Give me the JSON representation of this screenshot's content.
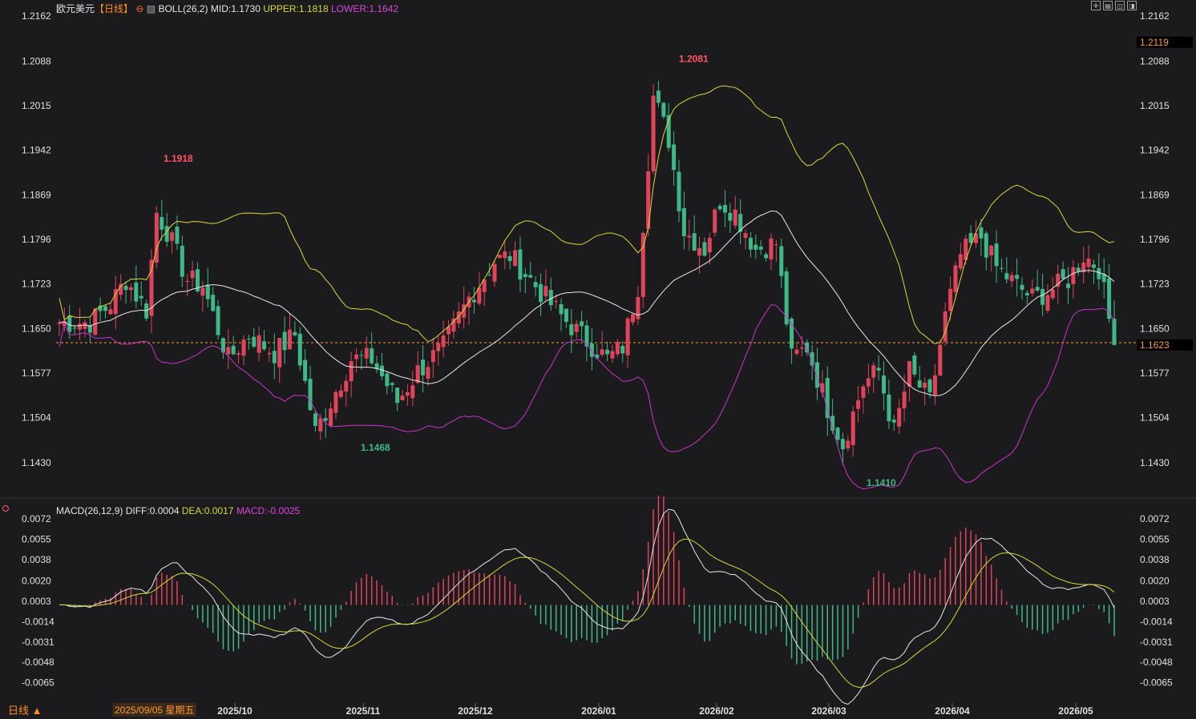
{
  "header": {
    "symbol": "欧元美元",
    "period_tag": "【日线】",
    "boll_label": "BOLL(26,2)",
    "mid": "MID:1.1730",
    "upper": "UPPER:1.1818",
    "lower": "LOWER:1.1642"
  },
  "macd_header": {
    "label": "MACD(26,12,9)",
    "diff": "DIFF:0.0004",
    "dea": "DEA:0.0017",
    "macd": "MACD:-0.0025"
  },
  "toolbar": {
    "icons": [
      "crosshair-icon",
      "layout-icon",
      "expand-icon",
      "collapse-icon"
    ]
  },
  "footer": {
    "period": "日线 ▲",
    "date_tip": "2025/09/05 星期五"
  },
  "price_tags": {
    "high_price": "1.2119",
    "current": "1.1623"
  },
  "colors": {
    "up": "#e0445a",
    "down": "#3fb887",
    "upper": "#d8d83a",
    "lower": "#cc33cc",
    "mid": "#e8e8e8",
    "dea": "#d8d83a",
    "diff": "#e8e8e8"
  },
  "chart_data": [
    {
      "type": "candlestick",
      "title": "欧元美元 日线",
      "y_ticks": [
        "1.2162",
        "1.2088",
        "1.2015",
        "1.1942",
        "1.1869",
        "1.1796",
        "1.1723",
        "1.1650",
        "1.1577",
        "1.1504",
        "1.1430"
      ],
      "ylim": [
        1.1388,
        1.2162
      ],
      "x_ticks": [
        "2025/10",
        "2025/11",
        "2025/12",
        "2026/01",
        "2026/02",
        "2026/03",
        "2026/04",
        "2026/05"
      ],
      "annotations": [
        {
          "label": "1.1918",
          "value": 1.1918
        },
        {
          "label": "1.2081",
          "value": 1.2081
        },
        {
          "label": "1.1468",
          "value": 1.1468
        },
        {
          "label": "1.1410",
          "value": 1.141
        }
      ],
      "current_price": 1.1623,
      "boll": {
        "period": 26,
        "width": 2,
        "mid": 1.173,
        "upper": 1.1818,
        "lower": 1.1642
      },
      "anchors": [
        [
          0,
          1.166
        ],
        [
          6,
          1.166
        ],
        [
          10,
          1.169
        ],
        [
          13,
          1.173
        ],
        [
          17,
          1.168
        ],
        [
          19,
          1.184
        ],
        [
          21,
          1.181
        ],
        [
          25,
          1.173
        ],
        [
          28,
          1.172
        ],
        [
          33,
          1.16
        ],
        [
          37,
          1.164
        ],
        [
          42,
          1.161
        ],
        [
          46,
          1.164
        ],
        [
          50,
          1.148
        ],
        [
          53,
          1.153
        ],
        [
          57,
          1.16
        ],
        [
          61,
          1.16
        ],
        [
          66,
          1.153
        ],
        [
          70,
          1.158
        ],
        [
          75,
          1.162
        ],
        [
          80,
          1.17
        ],
        [
          85,
          1.176
        ],
        [
          88,
          1.177
        ],
        [
          93,
          1.172
        ],
        [
          98,
          1.167
        ],
        [
          103,
          1.163
        ],
        [
          107,
          1.16
        ],
        [
          110,
          1.162
        ],
        [
          113,
          1.172
        ],
        [
          116,
          1.203
        ],
        [
          119,
          1.196
        ],
        [
          122,
          1.181
        ],
        [
          126,
          1.178
        ],
        [
          129,
          1.186
        ],
        [
          132,
          1.184
        ],
        [
          136,
          1.178
        ],
        [
          140,
          1.179
        ],
        [
          143,
          1.16
        ],
        [
          146,
          1.162
        ],
        [
          150,
          1.152
        ],
        [
          153,
          1.146
        ],
        [
          157,
          1.156
        ],
        [
          160,
          1.158
        ],
        [
          163,
          1.148
        ],
        [
          166,
          1.158
        ],
        [
          170,
          1.153
        ],
        [
          173,
          1.167
        ],
        [
          176,
          1.177
        ],
        [
          180,
          1.18
        ],
        [
          183,
          1.175
        ],
        [
          187,
          1.172
        ],
        [
          190,
          1.17
        ],
        [
          193,
          1.171
        ],
        [
          197,
          1.173
        ],
        [
          200,
          1.177
        ],
        [
          203,
          1.175
        ],
        [
          206,
          1.1623
        ]
      ]
    },
    {
      "type": "macd",
      "title": "MACD(26,12,9)",
      "y_ticks": [
        "0.0072",
        "0.0055",
        "0.0038",
        "0.0020",
        "0.0003",
        "-0.0014",
        "-0.0031",
        "-0.0048",
        "-0.0065"
      ],
      "ylim": [
        -0.0082,
        0.0072
      ]
    }
  ]
}
